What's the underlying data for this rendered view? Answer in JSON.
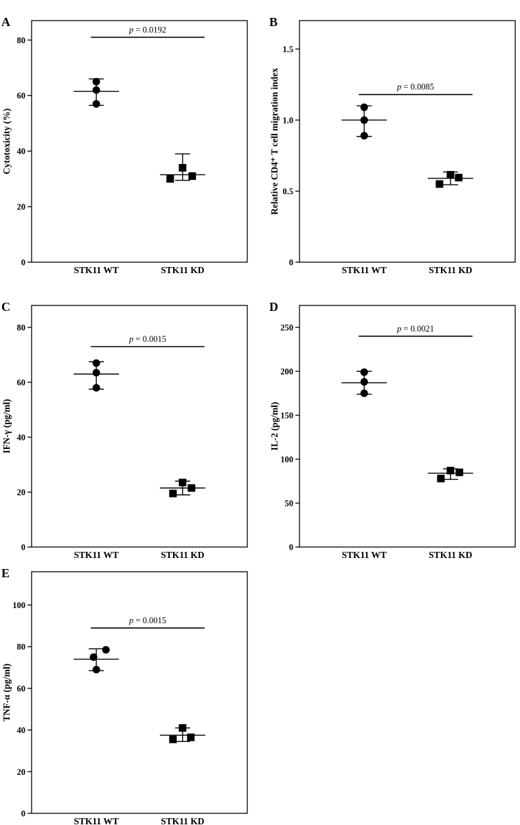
{
  "figure": {
    "background": "#ffffff",
    "ink": "#000000",
    "panels_order": [
      "A",
      "B",
      "C",
      "D",
      "E"
    ],
    "comparison": [
      "STK11 WT",
      "STK11 KD"
    ]
  },
  "chart_data": [
    {
      "panel": "A",
      "type": "scatter",
      "ylabel": "Cytotoxicity (%)",
      "ylim": [
        0,
        87
      ],
      "yticks": [
        0,
        20,
        40,
        60,
        80
      ],
      "ytick_labels": [
        "0",
        "20",
        "40",
        "60",
        "80"
      ],
      "categories": [
        "STK11 WT",
        "STK11 KD"
      ],
      "series": [
        {
          "name": "STK11 WT",
          "marker": "circle",
          "points": [
            {
              "dx": 0,
              "y": 65
            },
            {
              "dx": 0,
              "y": 62
            },
            {
              "dx": 0,
              "y": 57
            }
          ],
          "mean": 61.5,
          "err": [
            56.5,
            66
          ]
        },
        {
          "name": "STK11 KD",
          "marker": "square",
          "points": [
            {
              "dx": -18,
              "y": 30
            },
            {
              "dx": 0,
              "y": 34
            },
            {
              "dx": 14,
              "y": 31
            }
          ],
          "mean": 31.5,
          "err": [
            29.5,
            39
          ]
        }
      ],
      "p_label": "p = 0.0192",
      "sig_y": 81
    },
    {
      "panel": "B",
      "type": "scatter",
      "ylabel": "Relative CD4⁺ T cell migration index",
      "ylim": [
        0,
        1.7
      ],
      "yticks": [
        0,
        0.5,
        1.0,
        1.5
      ],
      "ytick_labels": [
        "0",
        "0.5",
        "1.0",
        "1.5"
      ],
      "categories": [
        "STK11 WT",
        "STK11 KD"
      ],
      "series": [
        {
          "name": "STK11 WT",
          "marker": "circle",
          "points": [
            {
              "dx": 0,
              "y": 1.09
            },
            {
              "dx": 0,
              "y": 1.0
            },
            {
              "dx": 0,
              "y": 0.89
            }
          ],
          "mean": 1.0,
          "err": [
            0.885,
            1.1
          ]
        },
        {
          "name": "STK11 KD",
          "marker": "square",
          "points": [
            {
              "dx": -16,
              "y": 0.55
            },
            {
              "dx": 0,
              "y": 0.615
            },
            {
              "dx": 12,
              "y": 0.595
            }
          ],
          "mean": 0.59,
          "err": [
            0.545,
            0.635
          ]
        }
      ],
      "p_label": "p = 0.0085",
      "sig_y": 1.18
    },
    {
      "panel": "C",
      "type": "scatter",
      "ylabel": "IFN-γ (pg/ml)",
      "ylim": [
        0,
        88
      ],
      "yticks": [
        0,
        20,
        40,
        60,
        80
      ],
      "ytick_labels": [
        "0",
        "20",
        "40",
        "60",
        "80"
      ],
      "categories": [
        "STK11 WT",
        "STK11 KD"
      ],
      "series": [
        {
          "name": "STK11 WT",
          "marker": "circle",
          "points": [
            {
              "dx": 0,
              "y": 67
            },
            {
              "dx": 0,
              "y": 63.5
            },
            {
              "dx": 0,
              "y": 58
            }
          ],
          "mean": 63,
          "err": [
            57.5,
            67.5
          ]
        },
        {
          "name": "STK11 KD",
          "marker": "square",
          "points": [
            {
              "dx": -14,
              "y": 19.5
            },
            {
              "dx": 0,
              "y": 23.5
            },
            {
              "dx": 13,
              "y": 21.5
            }
          ],
          "mean": 21.5,
          "err": [
            19,
            24
          ]
        }
      ],
      "p_label": "p = 0.0015",
      "sig_y": 73
    },
    {
      "panel": "D",
      "type": "scatter",
      "ylabel": "IL-2 (pg/ml)",
      "ylim": [
        0,
        275
      ],
      "yticks": [
        0,
        50,
        100,
        150,
        200,
        250
      ],
      "ytick_labels": [
        "0",
        "50",
        "100",
        "150",
        "200",
        "250"
      ],
      "categories": [
        "STK11 WT",
        "STK11 KD"
      ],
      "series": [
        {
          "name": "STK11 WT",
          "marker": "circle",
          "points": [
            {
              "dx": 0,
              "y": 199
            },
            {
              "dx": 0,
              "y": 188
            },
            {
              "dx": 0,
              "y": 175
            }
          ],
          "mean": 187,
          "err": [
            174,
            200
          ]
        },
        {
          "name": "STK11 KD",
          "marker": "square",
          "points": [
            {
              "dx": -14,
              "y": 78
            },
            {
              "dx": 0,
              "y": 87
            },
            {
              "dx": 13,
              "y": 85
            }
          ],
          "mean": 84,
          "err": [
            77,
            89
          ]
        }
      ],
      "p_label": "p = 0.0021",
      "sig_y": 240
    },
    {
      "panel": "E",
      "type": "scatter",
      "ylabel": "TNF-α (pg/ml)",
      "ylim": [
        0,
        116
      ],
      "yticks": [
        0,
        20,
        40,
        60,
        80,
        100
      ],
      "ytick_labels": [
        "0",
        "20",
        "40",
        "60",
        "80",
        "100"
      ],
      "categories": [
        "STK11 WT",
        "STK11 KD"
      ],
      "series": [
        {
          "name": "STK11 WT",
          "marker": "circle",
          "points": [
            {
              "dx": -4,
              "y": 75
            },
            {
              "dx": 14,
              "y": 78.5
            },
            {
              "dx": 0,
              "y": 69
            }
          ],
          "mean": 74,
          "err": [
            68.5,
            79
          ]
        },
        {
          "name": "STK11 KD",
          "marker": "square",
          "points": [
            {
              "dx": -14,
              "y": 35.5
            },
            {
              "dx": 0,
              "y": 41
            },
            {
              "dx": 12,
              "y": 36.5
            }
          ],
          "mean": 37.5,
          "err": [
            34.5,
            41
          ]
        }
      ],
      "p_label": "p = 0.0015",
      "sig_y": 89
    }
  ]
}
